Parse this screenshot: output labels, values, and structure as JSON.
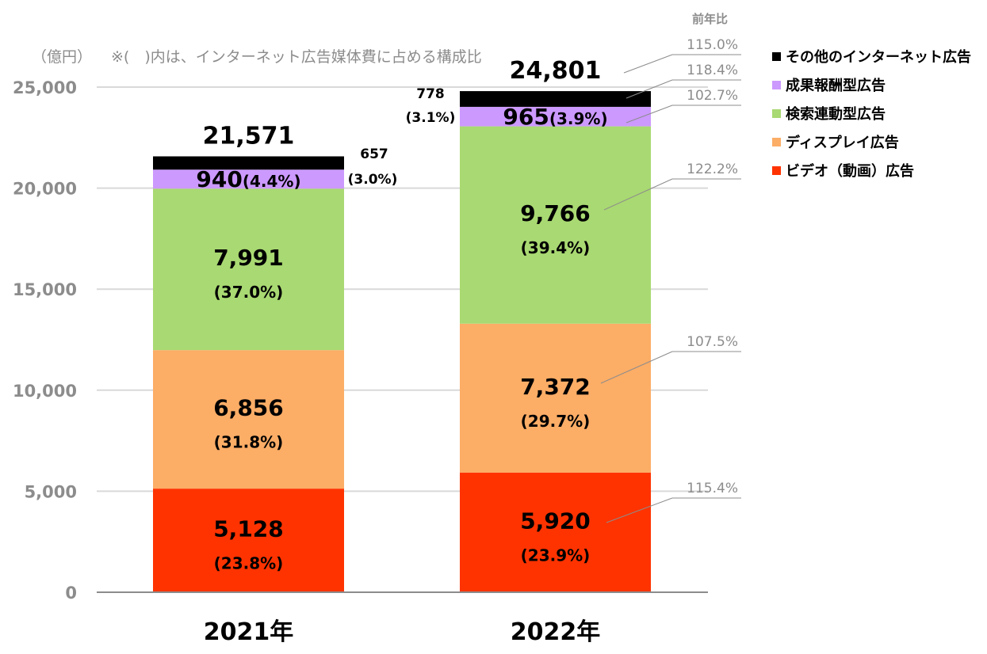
{
  "unit_note": "（億円）",
  "composition_note": "※(　)内は、インターネット広告媒体費に占める構成比",
  "yoy_header": "前年比",
  "chart_data": {
    "type": "bar",
    "stacked": true,
    "categories": [
      "2021年",
      "2022年"
    ],
    "ylim": [
      0,
      25000
    ],
    "yticks": [
      "0",
      "5,000",
      "10,000",
      "15,000",
      "20,000",
      "25,000"
    ],
    "ytick_values": [
      0,
      5000,
      10000,
      15000,
      20000,
      25000
    ],
    "grid": true,
    "legend_position": "top-right",
    "totals": [
      "21,571",
      "24,801"
    ],
    "total_values": [
      21571,
      24801
    ],
    "series": [
      {
        "name": "ビデオ（動画）広告",
        "color": "#ff3300",
        "values": [
          5128,
          5920
        ],
        "labels": [
          "5,128",
          "5,920"
        ],
        "shares": [
          "(23.8%)",
          "(23.9%)"
        ],
        "yoy": "115.4%"
      },
      {
        "name": "ディスプレイ広告",
        "color": "#fcad66",
        "values": [
          6856,
          7372
        ],
        "labels": [
          "6,856",
          "7,372"
        ],
        "shares": [
          "(31.8%)",
          "(29.7%)"
        ],
        "yoy": "107.5%"
      },
      {
        "name": "検索連動型広告",
        "color": "#a9d972",
        "values": [
          7991,
          9766
        ],
        "labels": [
          "7,991",
          "9,766"
        ],
        "shares": [
          "(37.0%)",
          "(39.4%)"
        ],
        "yoy": "122.2%"
      },
      {
        "name": "成果報酬型広告",
        "color": "#cc99ff",
        "values": [
          940,
          965
        ],
        "labels": [
          "940",
          "965"
        ],
        "shares": [
          "(4.4%)",
          "(3.9%)"
        ],
        "yoy": "102.7%"
      },
      {
        "name": "その他のインターネット広告",
        "color": "#000000",
        "values": [
          657,
          778
        ],
        "labels": [
          "657",
          "778"
        ],
        "shares": [
          "(3.0%)",
          "(3.1%)"
        ],
        "yoy": "118.4%"
      }
    ],
    "total_yoy": "115.0%",
    "legend_order": [
      "その他のインターネット広告",
      "成果報酬型広告",
      "検索連動型広告",
      "ディスプレイ広告",
      "ビデオ（動画）広告"
    ]
  }
}
